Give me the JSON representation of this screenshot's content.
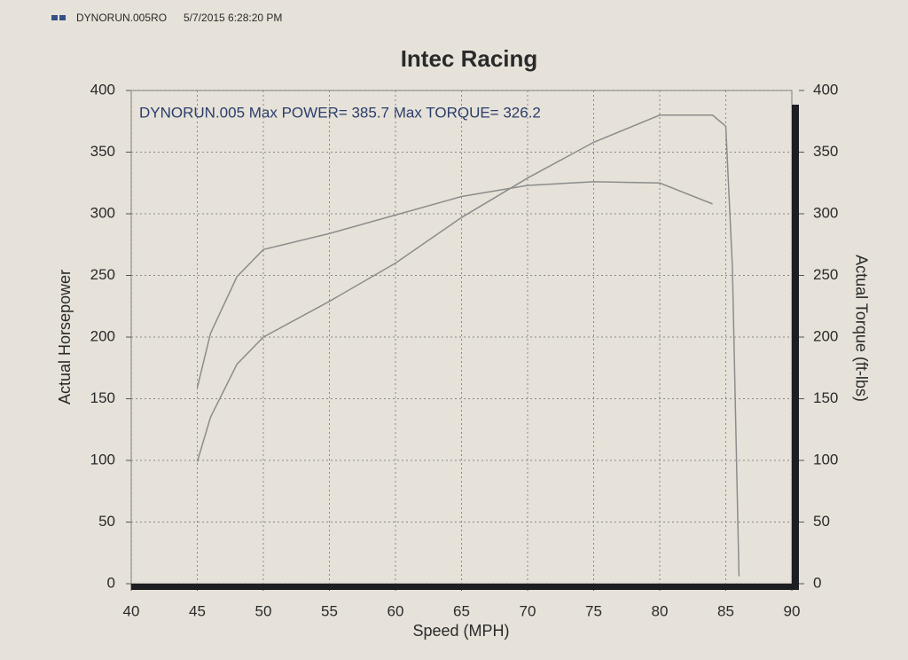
{
  "chart_data": {
    "type": "line",
    "header": "DYNORUN.005RO",
    "timestamp": "5/7/2015 6:28:20 PM",
    "title": "Intec Racing",
    "annotation": "DYNORUN.005  Max POWER= 385.7 Max TORQUE= 326.2",
    "xlabel": "Speed (MPH)",
    "ylabel": "Actual Horsepower",
    "y2label": "Actual Torque (ft-lbs)",
    "x": [
      45,
      46,
      48,
      50,
      55,
      60,
      65,
      70,
      75,
      80,
      84,
      85,
      85.5,
      86
    ],
    "series": [
      {
        "color": "#8c8c8c",
        "values": [
          99,
          135,
          178,
          200,
          229,
          260,
          297,
          329,
          358,
          380,
          380,
          371,
          257,
          6
        ]
      },
      {
        "color": "#8c8c8c",
        "axis": "y2",
        "values": [
          159,
          203,
          249,
          271,
          284,
          299,
          314,
          323,
          326,
          325,
          308,
          null,
          null,
          null
        ]
      }
    ],
    "xlim": [
      40,
      90
    ],
    "xticks": [
      40,
      45,
      50,
      55,
      60,
      65,
      70,
      75,
      80,
      85,
      90
    ],
    "ylim": [
      0,
      400
    ],
    "yticks": [
      0,
      50,
      100,
      150,
      200,
      250,
      300,
      350,
      400
    ],
    "y2lim": [
      0,
      400
    ],
    "y2ticks": [
      0,
      50,
      100,
      150,
      200,
      250,
      300,
      350,
      400
    ],
    "grid": true
  }
}
